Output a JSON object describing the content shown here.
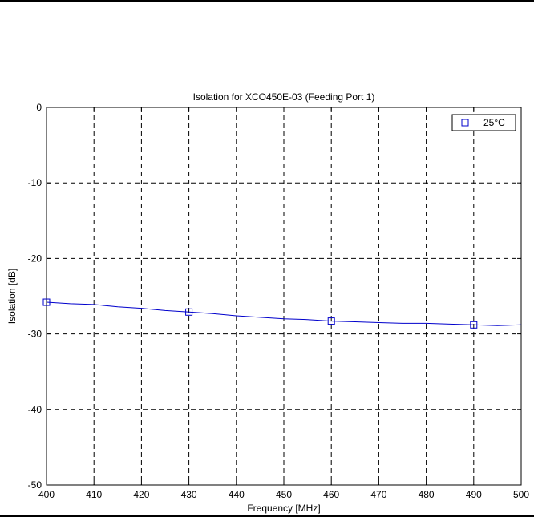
{
  "chart_data": {
    "type": "line",
    "title": "Isolation for XCO450E-03 (Feeding Port 1)",
    "xlabel": "Frequency [MHz]",
    "ylabel": "Isolation [dB]",
    "xlim": [
      400,
      500
    ],
    "ylim": [
      -50,
      0
    ],
    "xticks": [
      400,
      410,
      420,
      430,
      440,
      450,
      460,
      470,
      480,
      490,
      500
    ],
    "yticks": [
      -50,
      -40,
      -30,
      -20,
      -10,
      0
    ],
    "grid": true,
    "legend_position": "top-right",
    "series": [
      {
        "name": "25°C",
        "color": "#0000cc",
        "marker": "square",
        "x": [
          400,
          405,
          410,
          415,
          420,
          425,
          430,
          435,
          440,
          445,
          450,
          455,
          460,
          465,
          470,
          475,
          480,
          485,
          490,
          495,
          500
        ],
        "y": [
          -25.8,
          -26.0,
          -26.1,
          -26.4,
          -26.6,
          -26.9,
          -27.1,
          -27.3,
          -27.6,
          -27.8,
          -28.0,
          -28.1,
          -28.3,
          -28.4,
          -28.5,
          -28.6,
          -28.6,
          -28.7,
          -28.8,
          -28.9,
          -28.8
        ],
        "marker_x": [
          400,
          430,
          460,
          490
        ],
        "marker_y": [
          -25.8,
          -27.1,
          -28.3,
          -28.8
        ]
      }
    ]
  }
}
